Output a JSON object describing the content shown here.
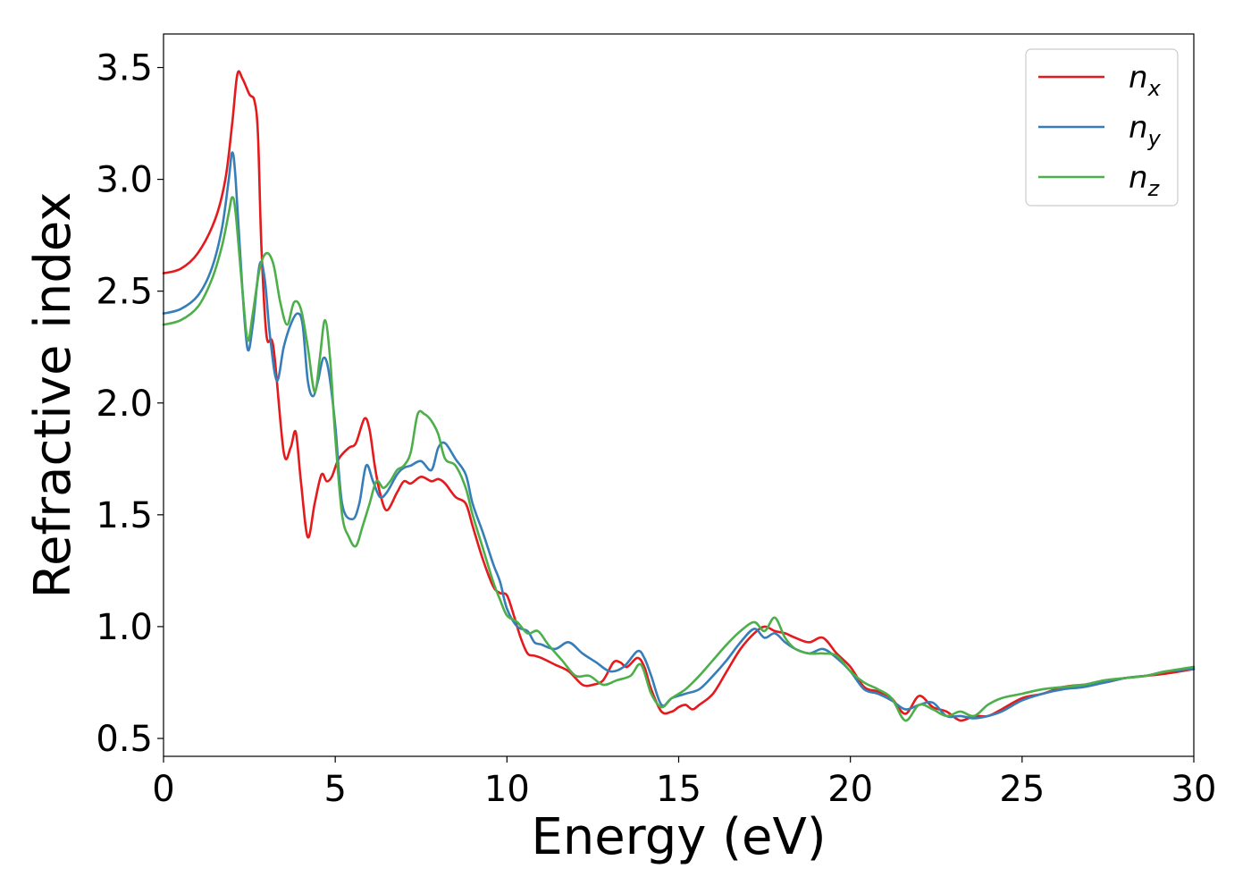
{
  "chart_data": {
    "type": "line",
    "xlabel": "Energy (eV)",
    "ylabel": "Refractive index",
    "xlim": [
      0,
      30
    ],
    "ylim": [
      0.42,
      3.65
    ],
    "xticks": [
      0,
      5,
      10,
      15,
      20,
      25,
      30
    ],
    "xtick_labels": [
      "0",
      "5",
      "10",
      "15",
      "20",
      "25",
      "30"
    ],
    "yticks": [
      0.5,
      1.0,
      1.5,
      2.0,
      2.5,
      3.0,
      3.5
    ],
    "ytick_labels": [
      "0.5",
      "1.0",
      "1.5",
      "2.0",
      "2.5",
      "3.0",
      "3.5"
    ],
    "grid": false,
    "legend_position": "top-right",
    "series": [
      {
        "name": "n",
        "subscript": "x",
        "color": "#e41a1c",
        "x": [
          0,
          0.5,
          1.0,
          1.5,
          1.8,
          2.0,
          2.15,
          2.3,
          2.5,
          2.65,
          2.75,
          2.85,
          3.0,
          3.2,
          3.5,
          3.7,
          3.85,
          4.0,
          4.2,
          4.4,
          4.6,
          4.75,
          4.9,
          5.1,
          5.4,
          5.6,
          5.85,
          6.0,
          6.15,
          6.3,
          6.5,
          6.8,
          7.0,
          7.2,
          7.5,
          7.8,
          8.0,
          8.2,
          8.5,
          8.8,
          9.0,
          9.3,
          9.6,
          9.8,
          10.0,
          10.2,
          10.4,
          10.6,
          10.8,
          11.0,
          11.4,
          11.8,
          12.2,
          12.5,
          12.8,
          13.1,
          13.3,
          13.5,
          13.8,
          14.0,
          14.2,
          14.5,
          14.8,
          15.0,
          15.2,
          15.4,
          15.6,
          16.0,
          16.4,
          16.8,
          17.2,
          17.5,
          17.8,
          18.1,
          18.4,
          18.8,
          19.2,
          19.6,
          20.0,
          20.4,
          20.8,
          21.2,
          21.6,
          22.0,
          22.4,
          22.8,
          23.2,
          23.6,
          24.0,
          24.4,
          25.0,
          25.6,
          26.2,
          26.8,
          27.4,
          28.0,
          28.6,
          29.2,
          30.0
        ],
        "y": [
          2.58,
          2.6,
          2.67,
          2.82,
          3.0,
          3.25,
          3.47,
          3.45,
          3.38,
          3.35,
          3.2,
          2.7,
          2.3,
          2.25,
          1.78,
          1.8,
          1.87,
          1.65,
          1.4,
          1.55,
          1.68,
          1.65,
          1.67,
          1.75,
          1.8,
          1.82,
          1.93,
          1.88,
          1.72,
          1.6,
          1.52,
          1.6,
          1.65,
          1.64,
          1.67,
          1.65,
          1.66,
          1.64,
          1.58,
          1.55,
          1.45,
          1.3,
          1.18,
          1.15,
          1.14,
          1.05,
          0.95,
          0.88,
          0.87,
          0.86,
          0.83,
          0.8,
          0.74,
          0.74,
          0.76,
          0.84,
          0.84,
          0.82,
          0.86,
          0.82,
          0.72,
          0.62,
          0.62,
          0.64,
          0.65,
          0.63,
          0.65,
          0.7,
          0.8,
          0.9,
          0.97,
          1.0,
          0.98,
          0.97,
          0.95,
          0.93,
          0.95,
          0.88,
          0.82,
          0.73,
          0.71,
          0.68,
          0.61,
          0.69,
          0.64,
          0.62,
          0.58,
          0.6,
          0.6,
          0.63,
          0.68,
          0.7,
          0.73,
          0.74,
          0.75,
          0.77,
          0.78,
          0.79,
          0.81
        ]
      },
      {
        "name": "n",
        "subscript": "y",
        "color": "#377eb8",
        "x": [
          0,
          0.5,
          1.0,
          1.4,
          1.7,
          1.9,
          2.0,
          2.1,
          2.3,
          2.45,
          2.6,
          2.8,
          2.95,
          3.1,
          3.3,
          3.5,
          3.7,
          3.9,
          4.05,
          4.2,
          4.35,
          4.5,
          4.65,
          4.8,
          5.0,
          5.2,
          5.5,
          5.7,
          5.9,
          6.1,
          6.3,
          6.5,
          6.8,
          7.0,
          7.2,
          7.5,
          7.8,
          8.0,
          8.2,
          8.5,
          8.8,
          9.0,
          9.3,
          9.6,
          9.8,
          10.0,
          10.3,
          10.6,
          10.8,
          11.0,
          11.4,
          11.8,
          12.2,
          12.6,
          13.0,
          13.4,
          13.8,
          14.0,
          14.2,
          14.5,
          14.8,
          15.2,
          15.6,
          16.0,
          16.4,
          16.8,
          17.2,
          17.5,
          17.8,
          18.1,
          18.4,
          18.8,
          19.2,
          19.6,
          20.0,
          20.4,
          20.8,
          21.2,
          21.6,
          22.0,
          22.4,
          22.8,
          23.2,
          23.6,
          24.0,
          24.4,
          25.0,
          25.6,
          26.2,
          26.8,
          27.4,
          28.0,
          28.6,
          29.2,
          30.0
        ],
        "y": [
          2.4,
          2.42,
          2.48,
          2.6,
          2.78,
          3.0,
          3.12,
          3.0,
          2.5,
          2.24,
          2.35,
          2.62,
          2.55,
          2.3,
          2.1,
          2.25,
          2.35,
          2.4,
          2.35,
          2.1,
          2.03,
          2.1,
          2.2,
          2.15,
          1.9,
          1.55,
          1.48,
          1.55,
          1.72,
          1.65,
          1.58,
          1.6,
          1.68,
          1.71,
          1.72,
          1.74,
          1.7,
          1.8,
          1.82,
          1.75,
          1.68,
          1.55,
          1.42,
          1.28,
          1.2,
          1.08,
          1.0,
          0.98,
          0.93,
          0.92,
          0.9,
          0.93,
          0.88,
          0.84,
          0.8,
          0.82,
          0.89,
          0.86,
          0.78,
          0.65,
          0.68,
          0.7,
          0.72,
          0.78,
          0.85,
          0.93,
          0.99,
          0.95,
          0.97,
          0.93,
          0.9,
          0.88,
          0.9,
          0.86,
          0.8,
          0.72,
          0.7,
          0.67,
          0.63,
          0.65,
          0.66,
          0.6,
          0.6,
          0.59,
          0.6,
          0.62,
          0.67,
          0.7,
          0.72,
          0.73,
          0.75,
          0.77,
          0.78,
          0.8,
          0.81
        ]
      },
      {
        "name": "n",
        "subscript": "z",
        "color": "#4daf4a",
        "x": [
          0,
          0.5,
          1.0,
          1.4,
          1.7,
          1.9,
          2.0,
          2.1,
          2.3,
          2.45,
          2.6,
          2.8,
          3.0,
          3.2,
          3.4,
          3.6,
          3.8,
          4.0,
          4.2,
          4.4,
          4.55,
          4.7,
          4.85,
          5.0,
          5.2,
          5.4,
          5.6,
          5.8,
          6.0,
          6.2,
          6.4,
          6.6,
          6.8,
          7.0,
          7.2,
          7.4,
          7.6,
          7.8,
          8.0,
          8.2,
          8.5,
          8.8,
          9.0,
          9.3,
          9.6,
          9.8,
          10.0,
          10.3,
          10.6,
          10.9,
          11.2,
          11.6,
          12.0,
          12.4,
          12.8,
          13.2,
          13.6,
          13.9,
          14.2,
          14.5,
          14.8,
          15.2,
          15.6,
          16.0,
          16.4,
          16.8,
          17.2,
          17.5,
          17.8,
          18.1,
          18.4,
          18.8,
          19.2,
          19.6,
          20.0,
          20.4,
          20.8,
          21.2,
          21.6,
          22.0,
          22.4,
          22.8,
          23.2,
          23.6,
          24.0,
          24.4,
          25.0,
          25.6,
          26.2,
          26.8,
          27.4,
          28.0,
          28.6,
          29.2,
          30.0
        ],
        "y": [
          2.35,
          2.37,
          2.43,
          2.55,
          2.7,
          2.85,
          2.92,
          2.85,
          2.5,
          2.28,
          2.4,
          2.6,
          2.67,
          2.62,
          2.45,
          2.35,
          2.45,
          2.42,
          2.25,
          2.05,
          2.2,
          2.37,
          2.2,
          1.85,
          1.5,
          1.4,
          1.36,
          1.45,
          1.55,
          1.65,
          1.62,
          1.65,
          1.7,
          1.72,
          1.78,
          1.95,
          1.95,
          1.92,
          1.86,
          1.75,
          1.72,
          1.62,
          1.5,
          1.35,
          1.2,
          1.12,
          1.05,
          1.02,
          0.97,
          0.98,
          0.92,
          0.85,
          0.78,
          0.78,
          0.74,
          0.76,
          0.78,
          0.83,
          0.7,
          0.64,
          0.68,
          0.72,
          0.78,
          0.85,
          0.92,
          0.98,
          1.02,
          0.98,
          1.04,
          0.95,
          0.9,
          0.88,
          0.88,
          0.87,
          0.8,
          0.75,
          0.72,
          0.68,
          0.58,
          0.65,
          0.63,
          0.6,
          0.62,
          0.6,
          0.65,
          0.68,
          0.7,
          0.72,
          0.73,
          0.74,
          0.76,
          0.77,
          0.78,
          0.8,
          0.82
        ]
      }
    ]
  }
}
